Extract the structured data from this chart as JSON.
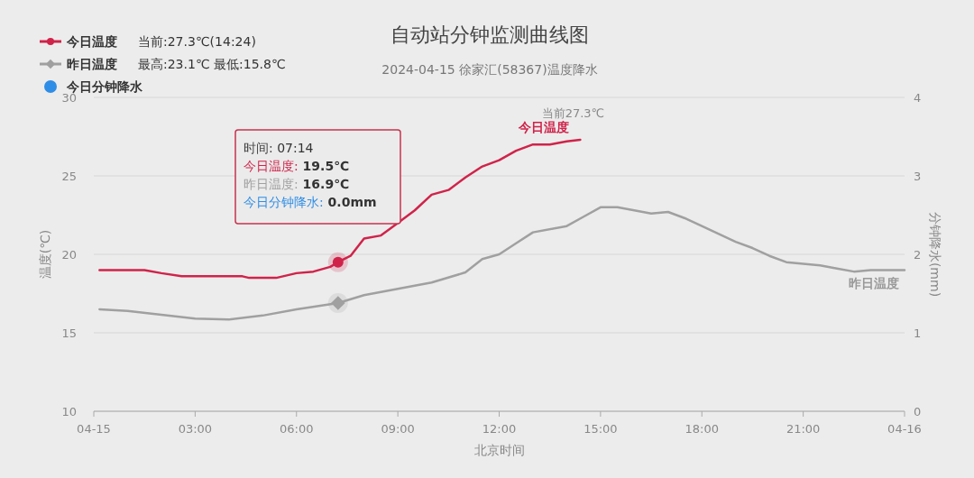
{
  "chart_data": {
    "type": "line",
    "title": "自动站分钟监测曲线图",
    "subtitle": "2024-04-15 徐家汇(58367)温度降水",
    "xlabel": "北京时间",
    "ylabel": "温度(℃)",
    "y2label": "分钟降水(mm)",
    "xlim": [
      0,
      24
    ],
    "xticks": [
      {
        "value": 0,
        "label": "04-15"
      },
      {
        "value": 3,
        "label": "03:00"
      },
      {
        "value": 6,
        "label": "06:00"
      },
      {
        "value": 9,
        "label": "09:00"
      },
      {
        "value": 12,
        "label": "12:00"
      },
      {
        "value": 15,
        "label": "15:00"
      },
      {
        "value": 18,
        "label": "18:00"
      },
      {
        "value": 21,
        "label": "21:00"
      },
      {
        "value": 24,
        "label": "04-16"
      }
    ],
    "ylim": [
      10,
      30
    ],
    "yticks": [
      10,
      15,
      20,
      25,
      30
    ],
    "y2lim": [
      0,
      4
    ],
    "y2ticks": [
      0,
      1,
      2,
      3,
      4
    ],
    "grid": "y",
    "legend": "top left",
    "series": [
      {
        "name": "今日温度",
        "color": "#d0234a",
        "x": [
          0.17,
          1.5,
          2.0,
          2.6,
          4.4,
          4.6,
          5.4,
          6.0,
          6.5,
          7.0,
          7.23,
          7.6,
          8.0,
          8.5,
          9.0,
          9.5,
          10.0,
          10.5,
          11.0,
          11.5,
          12.0,
          12.5,
          13.0,
          13.5,
          14.0,
          14.4
        ],
        "values": [
          19.0,
          19.0,
          18.8,
          18.6,
          18.6,
          18.5,
          18.5,
          18.8,
          18.9,
          19.2,
          19.5,
          19.9,
          21.0,
          21.2,
          22.0,
          22.8,
          23.8,
          24.1,
          24.9,
          25.6,
          26.0,
          26.6,
          27.0,
          27.0,
          27.2,
          27.3
        ]
      },
      {
        "name": "昨日温度",
        "color": "#a0a0a0",
        "x": [
          0.17,
          1,
          2,
          3,
          4,
          5,
          6,
          7.23,
          8,
          9,
          10,
          11,
          11.5,
          12,
          12.5,
          13,
          14,
          14.5,
          15,
          15.5,
          16,
          16.5,
          17,
          17.5,
          18,
          18.5,
          19,
          19.5,
          20,
          20.5,
          21,
          21.5,
          22,
          22.5,
          23,
          24
        ],
        "values": [
          16.5,
          16.4,
          16.15,
          15.9,
          15.85,
          16.1,
          16.5,
          16.9,
          17.4,
          17.8,
          18.2,
          18.85,
          19.7,
          20.0,
          20.7,
          21.4,
          21.8,
          22.4,
          23.0,
          23.0,
          22.8,
          22.6,
          22.7,
          22.3,
          21.8,
          21.3,
          20.8,
          20.4,
          19.9,
          19.5,
          19.4,
          19.3,
          19.1,
          18.9,
          19.0,
          19.0
        ]
      },
      {
        "name": "今日分钟降水",
        "color": "#2e8de6"
      }
    ],
    "annotations": [
      "当前:27.3℃(14:24)",
      "最高:23.1℃ 最低:15.8℃",
      "时间: 07:14",
      "今日温度: 19.5℃",
      "昨日温度: 16.9℃",
      "今日分钟降水: 0.0mm",
      "今日温度",
      "当前27.3℃",
      "昨日温度"
    ]
  }
}
